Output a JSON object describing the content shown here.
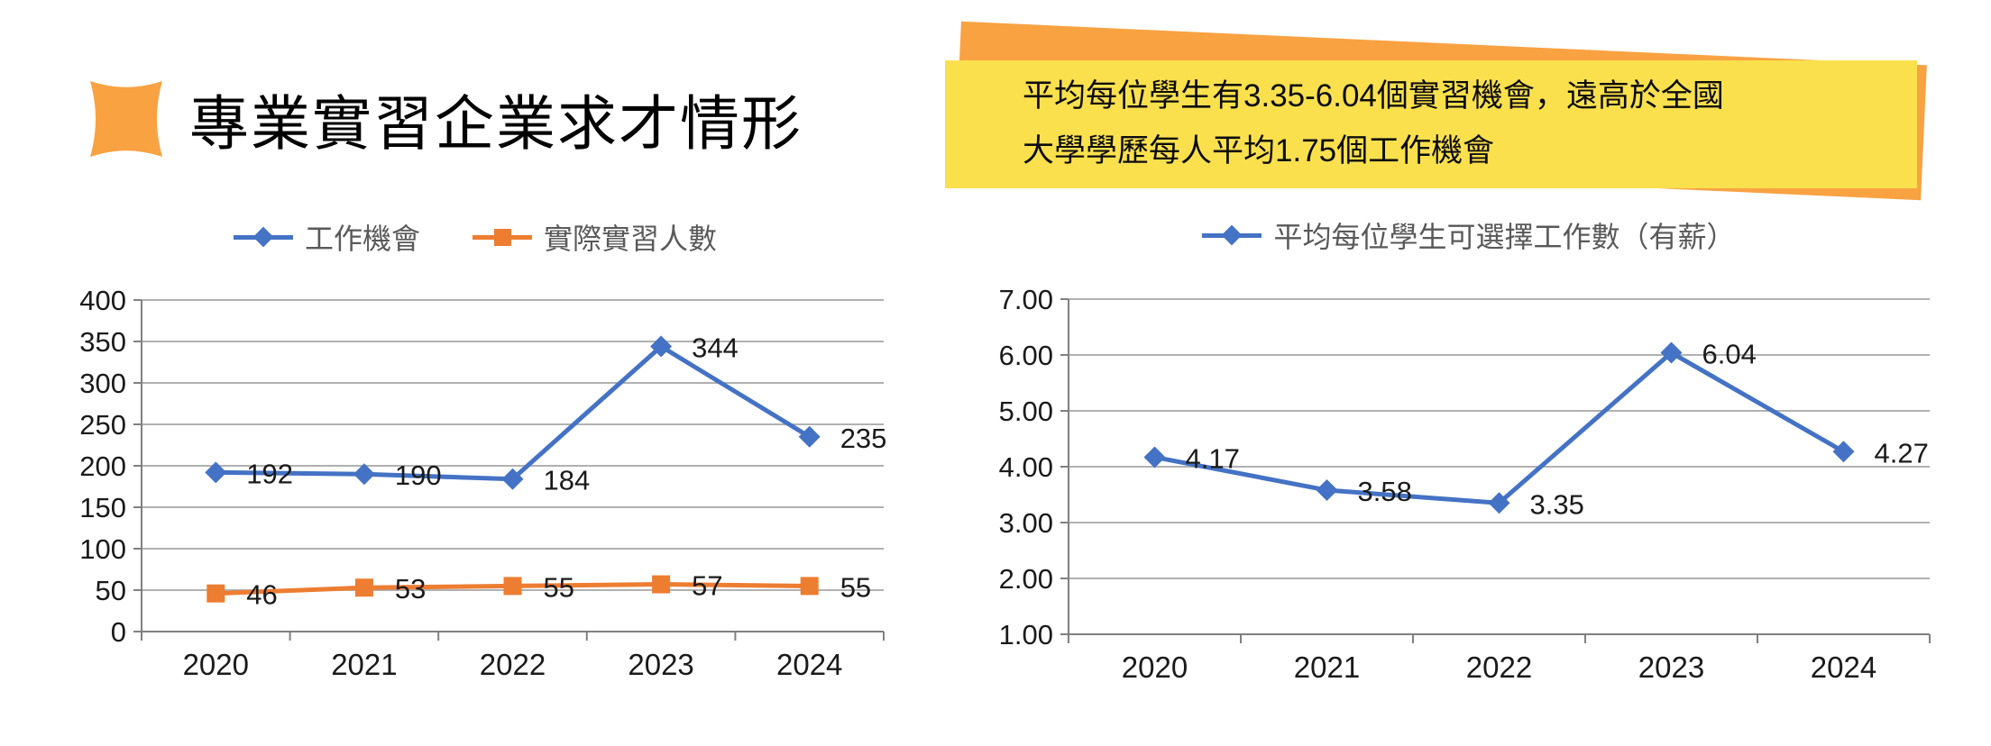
{
  "header": {
    "title": "專業實習企業求才情形"
  },
  "callout": {
    "line1": "平均每位學生有3.35-6.04個實習機會，遠高於全國",
    "line2": "大學學歷每人平均1.75個工作機會"
  },
  "colors": {
    "series_blue": "#4472C4",
    "series_orange": "#ED7D31",
    "decor_orange": "#F9A242",
    "callout_yellow": "#FBE04E",
    "gridline": "#A6A6A6",
    "axis": "#808080",
    "tick_label": "#1a1a1a",
    "legend_text": "#595959"
  },
  "chart_data": [
    {
      "type": "line",
      "title": "",
      "categories": [
        "2020",
        "2021",
        "2022",
        "2023",
        "2024"
      ],
      "series": [
        {
          "name": "工作機會",
          "color": "#4472C4",
          "marker": "diamond",
          "values": [
            192,
            190,
            184,
            344,
            235
          ],
          "labels": [
            "192",
            "190",
            "184",
            "344",
            "235"
          ]
        },
        {
          "name": "實際實習人數",
          "color": "#ED7D31",
          "marker": "square",
          "values": [
            46,
            53,
            55,
            57,
            55
          ],
          "labels": [
            "46",
            "53",
            "55",
            "57",
            "55"
          ]
        }
      ],
      "xlabel": "",
      "ylabel": "",
      "ylim": [
        0,
        400
      ],
      "ystep": 50,
      "decimals": 0,
      "yticks": [
        "0",
        "50",
        "100",
        "150",
        "200",
        "250",
        "300",
        "350",
        "400"
      ],
      "grid": true,
      "legend_position": "top"
    },
    {
      "type": "line",
      "title": "",
      "categories": [
        "2020",
        "2021",
        "2022",
        "2023",
        "2024"
      ],
      "series": [
        {
          "name": "平均每位學生可選擇工作數（有薪）",
          "color": "#4472C4",
          "marker": "diamond",
          "values": [
            4.17,
            3.58,
            3.35,
            6.04,
            4.27
          ],
          "labels": [
            "4.17",
            "3.58",
            "3.35",
            "6.04",
            "4.27"
          ]
        }
      ],
      "xlabel": "",
      "ylabel": "",
      "ylim": [
        1,
        7
      ],
      "ystep": 1,
      "decimals": 2,
      "yticks": [
        "1.00",
        "2.00",
        "3.00",
        "4.00",
        "5.00",
        "6.00",
        "7.00"
      ],
      "grid": true,
      "legend_position": "top"
    }
  ]
}
